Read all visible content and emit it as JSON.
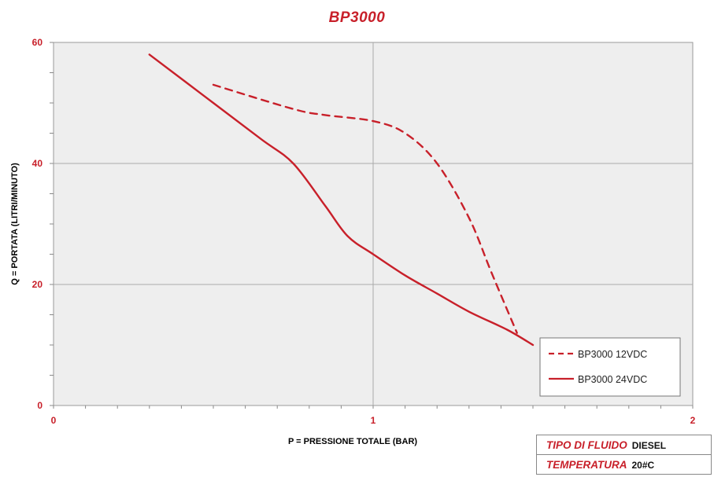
{
  "chart_data": {
    "type": "line",
    "title": "BP3000",
    "xlabel": "P = PRESSIONE TOTALE (BAR)",
    "ylabel": "Q = PORTATA (LITRI/MINUTO)",
    "xlim": [
      0,
      2
    ],
    "ylim": [
      0,
      60
    ],
    "xticks": [
      "0",
      "1",
      "2"
    ],
    "yticks": [
      "0",
      "20",
      "40",
      "60"
    ],
    "grid": true,
    "legend_position": "bottom-right",
    "series": [
      {
        "name": "BP3000 12VDC",
        "style": "dashed",
        "color": "#c8202a",
        "points": [
          [
            0.5,
            53
          ],
          [
            0.75,
            49
          ],
          [
            0.85,
            48
          ],
          [
            1.0,
            47
          ],
          [
            1.1,
            45
          ],
          [
            1.2,
            40
          ],
          [
            1.3,
            31
          ],
          [
            1.37,
            22
          ],
          [
            1.45,
            12
          ]
        ]
      },
      {
        "name": "BP3000 24VDC",
        "style": "solid",
        "color": "#c8202a",
        "points": [
          [
            0.3,
            58
          ],
          [
            0.5,
            50
          ],
          [
            0.65,
            44
          ],
          [
            0.75,
            40
          ],
          [
            0.85,
            33
          ],
          [
            0.92,
            28
          ],
          [
            1.0,
            25
          ],
          [
            1.1,
            21.5
          ],
          [
            1.2,
            18.5
          ],
          [
            1.3,
            15.5
          ],
          [
            1.42,
            12.5
          ],
          [
            1.5,
            10
          ]
        ]
      }
    ]
  },
  "info_table": {
    "fluid_label": "TIPO DI FLUIDO",
    "fluid_value": "DIESEL",
    "temp_label": "TEMPERATURA",
    "temp_value": "20#C"
  }
}
